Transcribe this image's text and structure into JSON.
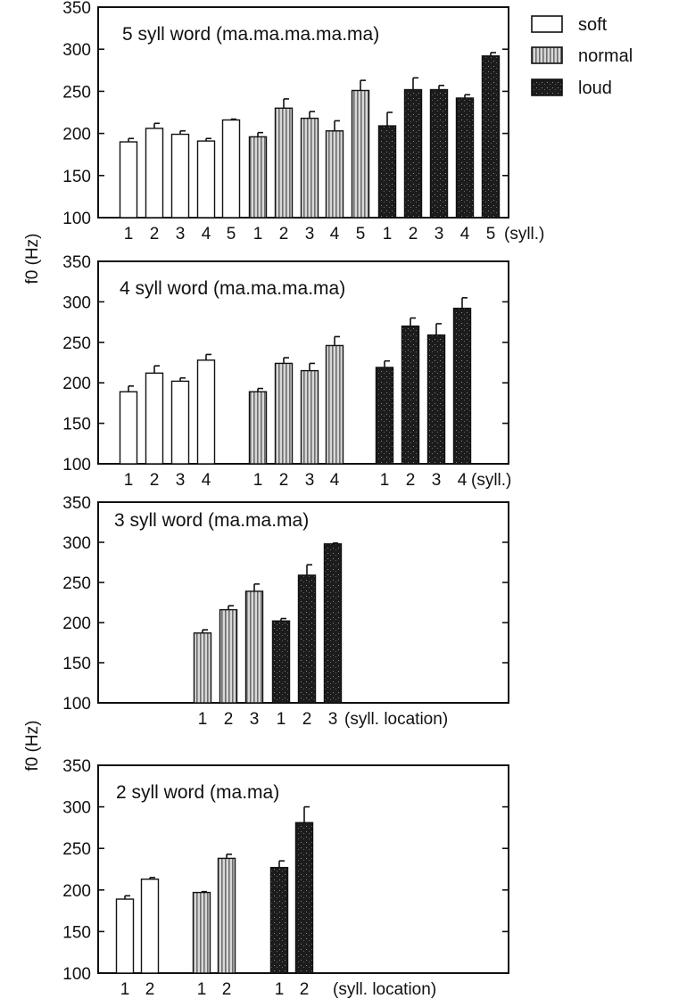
{
  "legend": [
    {
      "label": "soft",
      "key": "soft"
    },
    {
      "label": "normal",
      "key": "normal"
    },
    {
      "label": "loud",
      "key": "loud"
    }
  ],
  "y_axis_labels": [
    "f0 (Hz)",
    "f0 (Hz)"
  ],
  "colors": {
    "soft": "#ffffff",
    "normal": "#b9b9b9",
    "loud": "#1e1e1e",
    "ink": "#111111"
  },
  "chart_data": [
    {
      "type": "bar",
      "title": "5 syll word (ma.ma.ma.ma.ma)",
      "ylabel": "f0 (Hz)",
      "ylim": [
        100,
        350
      ],
      "yticks": [
        100,
        150,
        200,
        250,
        300,
        350
      ],
      "categories": [
        "1",
        "2",
        "3",
        "4",
        "5"
      ],
      "axis_suffix": "(syll.)",
      "series": [
        {
          "name": "soft",
          "values": [
            190,
            206,
            199,
            191,
            216
          ],
          "errors": [
            4,
            6,
            4,
            3,
            1
          ]
        },
        {
          "name": "normal",
          "values": [
            196,
            230,
            218,
            203,
            251
          ],
          "errors": [
            5,
            11,
            8,
            12,
            12
          ]
        },
        {
          "name": "loud",
          "values": [
            209,
            252,
            252,
            242,
            292
          ],
          "errors": [
            16,
            14,
            5,
            4,
            4
          ]
        }
      ]
    },
    {
      "type": "bar",
      "title": "4 syll word (ma.ma.ma.ma)",
      "ylabel": "f0 (Hz)",
      "ylim": [
        100,
        350
      ],
      "yticks": [
        100,
        150,
        200,
        250,
        300,
        350
      ],
      "categories": [
        "1",
        "2",
        "3",
        "4"
      ],
      "axis_suffix": "(syll.)",
      "series": [
        {
          "name": "soft",
          "values": [
            189,
            212,
            202,
            228
          ],
          "errors": [
            7,
            9,
            4,
            7
          ]
        },
        {
          "name": "normal",
          "values": [
            189,
            224,
            215,
            246
          ],
          "errors": [
            4,
            7,
            9,
            11
          ]
        },
        {
          "name": "loud",
          "values": [
            219,
            270,
            259,
            292
          ],
          "errors": [
            8,
            10,
            14,
            13
          ]
        }
      ]
    },
    {
      "type": "bar",
      "title": "3 syll word (ma.ma.ma)",
      "ylabel": "f0 (Hz)",
      "ylim": [
        100,
        350
      ],
      "yticks": [
        100,
        150,
        200,
        250,
        300,
        350
      ],
      "categories": [
        "1",
        "2",
        "3"
      ],
      "axis_suffix": "(syll. location)",
      "series": [
        {
          "name": "normal",
          "values": [
            187,
            216,
            239
          ],
          "errors": [
            4,
            5,
            9
          ]
        },
        {
          "name": "loud",
          "values": [
            202,
            259,
            298
          ],
          "errors": [
            3,
            13,
            1
          ]
        }
      ]
    },
    {
      "type": "bar",
      "title": "2 syll word (ma.ma)",
      "ylabel": "f0 (Hz)",
      "ylim": [
        100,
        350
      ],
      "yticks": [
        100,
        150,
        200,
        250,
        300,
        350
      ],
      "categories": [
        "1",
        "2"
      ],
      "axis_suffix": "(syll. location)",
      "series": [
        {
          "name": "soft",
          "values": [
            189,
            213
          ],
          "errors": [
            4,
            2
          ]
        },
        {
          "name": "normal",
          "values": [
            197,
            238
          ],
          "errors": [
            1,
            5
          ]
        },
        {
          "name": "loud",
          "values": [
            227,
            281
          ],
          "errors": [
            8,
            19
          ]
        }
      ]
    }
  ]
}
